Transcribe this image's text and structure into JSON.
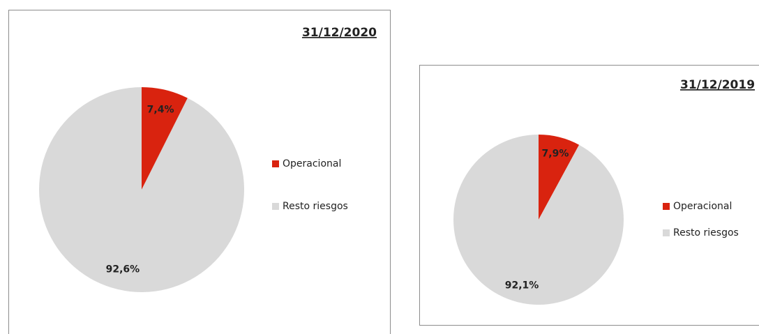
{
  "chart_data": [
    {
      "type": "pie",
      "title": "31/12/2020",
      "categories": [
        "Operacional",
        "Resto riesgos"
      ],
      "values": [
        7.4,
        92.6
      ],
      "value_labels": [
        "7,4%",
        "92,6%"
      ],
      "colors": [
        "#d9230f",
        "#d9d9d9"
      ],
      "legend": "right"
    },
    {
      "type": "pie",
      "title": "31/12/2019",
      "categories": [
        "Operacional",
        "Resto riesgos"
      ],
      "values": [
        7.9,
        92.1
      ],
      "value_labels": [
        "7,9%",
        "92,1%"
      ],
      "colors": [
        "#d9230f",
        "#d9d9d9"
      ],
      "legend": "right"
    }
  ]
}
